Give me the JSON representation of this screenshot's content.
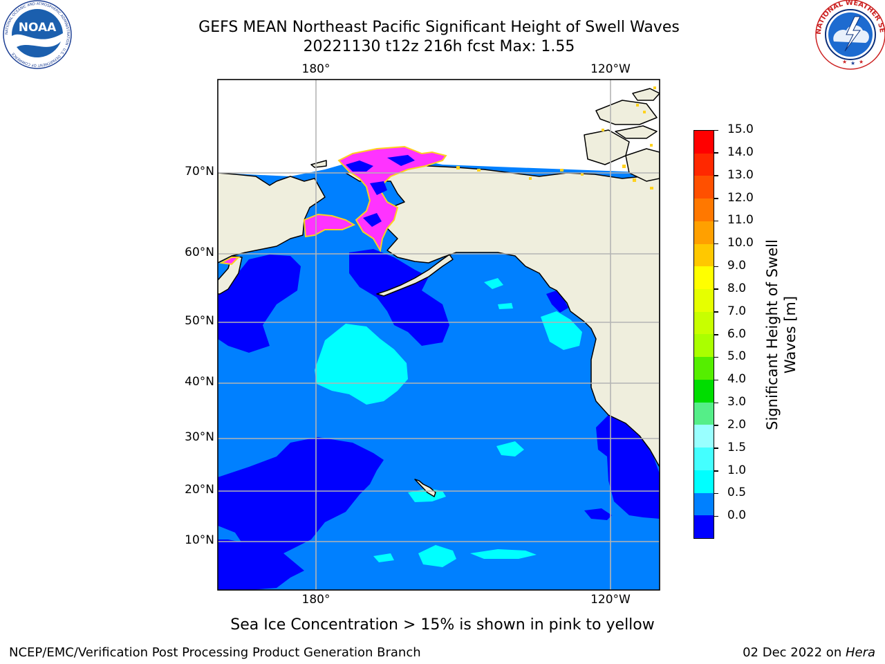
{
  "title": {
    "line1": "GEFS MEAN Northeast Pacific Significant Height of Swell Waves",
    "line2": "20221130 t12z 216h fcst   Max: 1.55"
  },
  "logos": {
    "noaa": {
      "text": "NOAA",
      "ring_text": "NATIONAL OCEANIC AND ATMOSPHERIC ADMINISTRATION · U.S. DEPARTMENT OF COMMERCE"
    },
    "nws": {
      "ring_text": "NATIONAL WEATHER SERVICE"
    }
  },
  "map": {
    "lon_labels_top": [
      "180°",
      "120°W"
    ],
    "lon_labels_bottom": [
      "180°",
      "120°W"
    ],
    "lat_labels": [
      "70°N",
      "60°N",
      "50°N",
      "40°N",
      "30°N",
      "20°N",
      "10°N"
    ],
    "colors": {
      "land": "#efeedd",
      "coast": "#000000",
      "grid": "#b4b4b4",
      "ice_pink": "#ff33ff",
      "ice_yellow": "#ffd21e"
    }
  },
  "colorbar": {
    "title": "Significant Height of Swell Waves [m]",
    "labels": [
      "15.0",
      "14.0",
      "13.0",
      "12.0",
      "11.0",
      "10.0",
      "9.0",
      "8.0",
      "7.0",
      "6.0",
      "5.0",
      "4.0",
      "3.0",
      "2.0",
      "1.5",
      "1.0",
      "0.5",
      "0.0"
    ],
    "colors_top_to_bottom": [
      "#ff0000",
      "#ff2800",
      "#ff5000",
      "#ff7800",
      "#ffa000",
      "#ffc800",
      "#ffff00",
      "#e6ff00",
      "#c8ff00",
      "#aaff00",
      "#55ee00",
      "#00dd00",
      "#55ee88",
      "#99ffff",
      "#44ffff",
      "#00ffff",
      "#0080ff",
      "#0000ff"
    ]
  },
  "caption": "Sea Ice Concentration > 15% is shown in pink to yellow",
  "footer": {
    "left": "NCEP/EMC/Verification Post Processing Product Generation Branch",
    "right_date": "02 Dec 2022 on ",
    "right_host": "Hera"
  }
}
